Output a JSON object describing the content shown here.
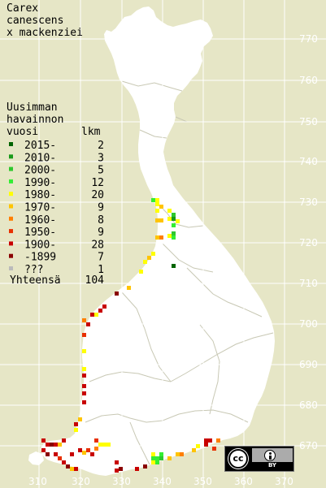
{
  "title": {
    "lines": [
      "Carex",
      "canescens",
      "x mackenziei"
    ]
  },
  "legend": {
    "header_lines": [
      "Uusimman",
      "havainnon",
      "vuosi"
    ],
    "count_header": "lkm",
    "rows": [
      {
        "label": "2015-",
        "count": "2",
        "color": "#006400"
      },
      {
        "label": "2010-",
        "count": "3",
        "color": "#1a9a1a"
      },
      {
        "label": "2000-",
        "count": "5",
        "color": "#2ec82e"
      },
      {
        "label": "1990-",
        "count": "12",
        "color": "#33ee33"
      },
      {
        "label": "1980-",
        "count": "20",
        "color": "#ffff00"
      },
      {
        "label": "1970-",
        "count": "9",
        "color": "#ffc400"
      },
      {
        "label": "1960-",
        "count": "8",
        "color": "#ff7f00"
      },
      {
        "label": "1950-",
        "count": "9",
        "color": "#e83000"
      },
      {
        "label": "1900-",
        "count": "28",
        "color": "#c80000"
      },
      {
        "label": "-1899",
        "count": "7",
        "color": "#8a0000"
      },
      {
        "label": "???",
        "count": "1",
        "color": "#bbbbbb"
      }
    ],
    "total_label": "Yhteensä",
    "total_count": "104"
  },
  "grid": {
    "y_ticks": [
      "770",
      "760",
      "750",
      "740",
      "730",
      "720",
      "710",
      "700",
      "690",
      "680",
      "670"
    ],
    "x_ticks": [
      "310",
      "320",
      "330",
      "340",
      "350",
      "360",
      "370"
    ]
  },
  "colors": {
    "background": "#e6e6c6",
    "land": "#ffffff",
    "grid": "#ffffff",
    "borders": "#c8c8b4"
  },
  "license": {
    "cc_text": "cc",
    "by_text": "BY"
  }
}
